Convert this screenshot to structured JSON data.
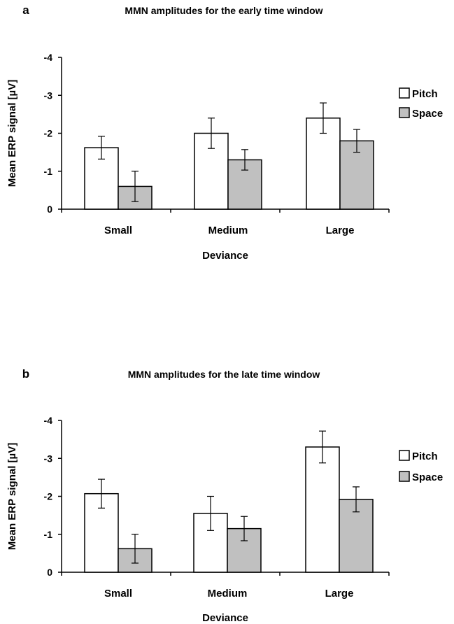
{
  "chart_data": [
    {
      "panel": "a",
      "type": "bar",
      "title": "MMN amplitudes for the early time window",
      "xlabel": "Deviance",
      "ylabel": "Mean ERP signal  [µV]",
      "categories": [
        "Small",
        "Medium",
        "Large"
      ],
      "ylim": [
        0,
        -4
      ],
      "yticks": [
        0,
        -1,
        -2,
        -3,
        -4
      ],
      "ytick_labels": [
        "0",
        "-1",
        "-2",
        "-3",
        "-4"
      ],
      "legend_position": "right",
      "series": [
        {
          "name": "Pitch",
          "color": "#ffffff",
          "values": [
            -1.62,
            -2.0,
            -2.4
          ],
          "errors": [
            0.3,
            0.4,
            0.4
          ]
        },
        {
          "name": "Space",
          "color": "#c0c0c0",
          "values": [
            -0.6,
            -1.3,
            -1.8
          ],
          "errors": [
            0.4,
            0.27,
            0.3
          ]
        }
      ]
    },
    {
      "panel": "b",
      "type": "bar",
      "title": "MMN amplitudes for the late time window",
      "xlabel": "Deviance",
      "ylabel": "Mean ERP signal  [µV]",
      "categories": [
        "Small",
        "Medium",
        "Large"
      ],
      "ylim": [
        0,
        -4
      ],
      "yticks": [
        0,
        -1,
        -2,
        -3,
        -4
      ],
      "ytick_labels": [
        "0",
        "-1",
        "-2",
        "-3",
        "-4"
      ],
      "legend_position": "right",
      "series": [
        {
          "name": "Pitch",
          "color": "#ffffff",
          "values": [
            -2.07,
            -1.55,
            -3.3
          ],
          "errors": [
            0.38,
            0.45,
            0.42
          ]
        },
        {
          "name": "Space",
          "color": "#c0c0c0",
          "values": [
            -0.62,
            -1.15,
            -1.92
          ],
          "errors": [
            0.38,
            0.32,
            0.33
          ]
        }
      ]
    }
  ]
}
